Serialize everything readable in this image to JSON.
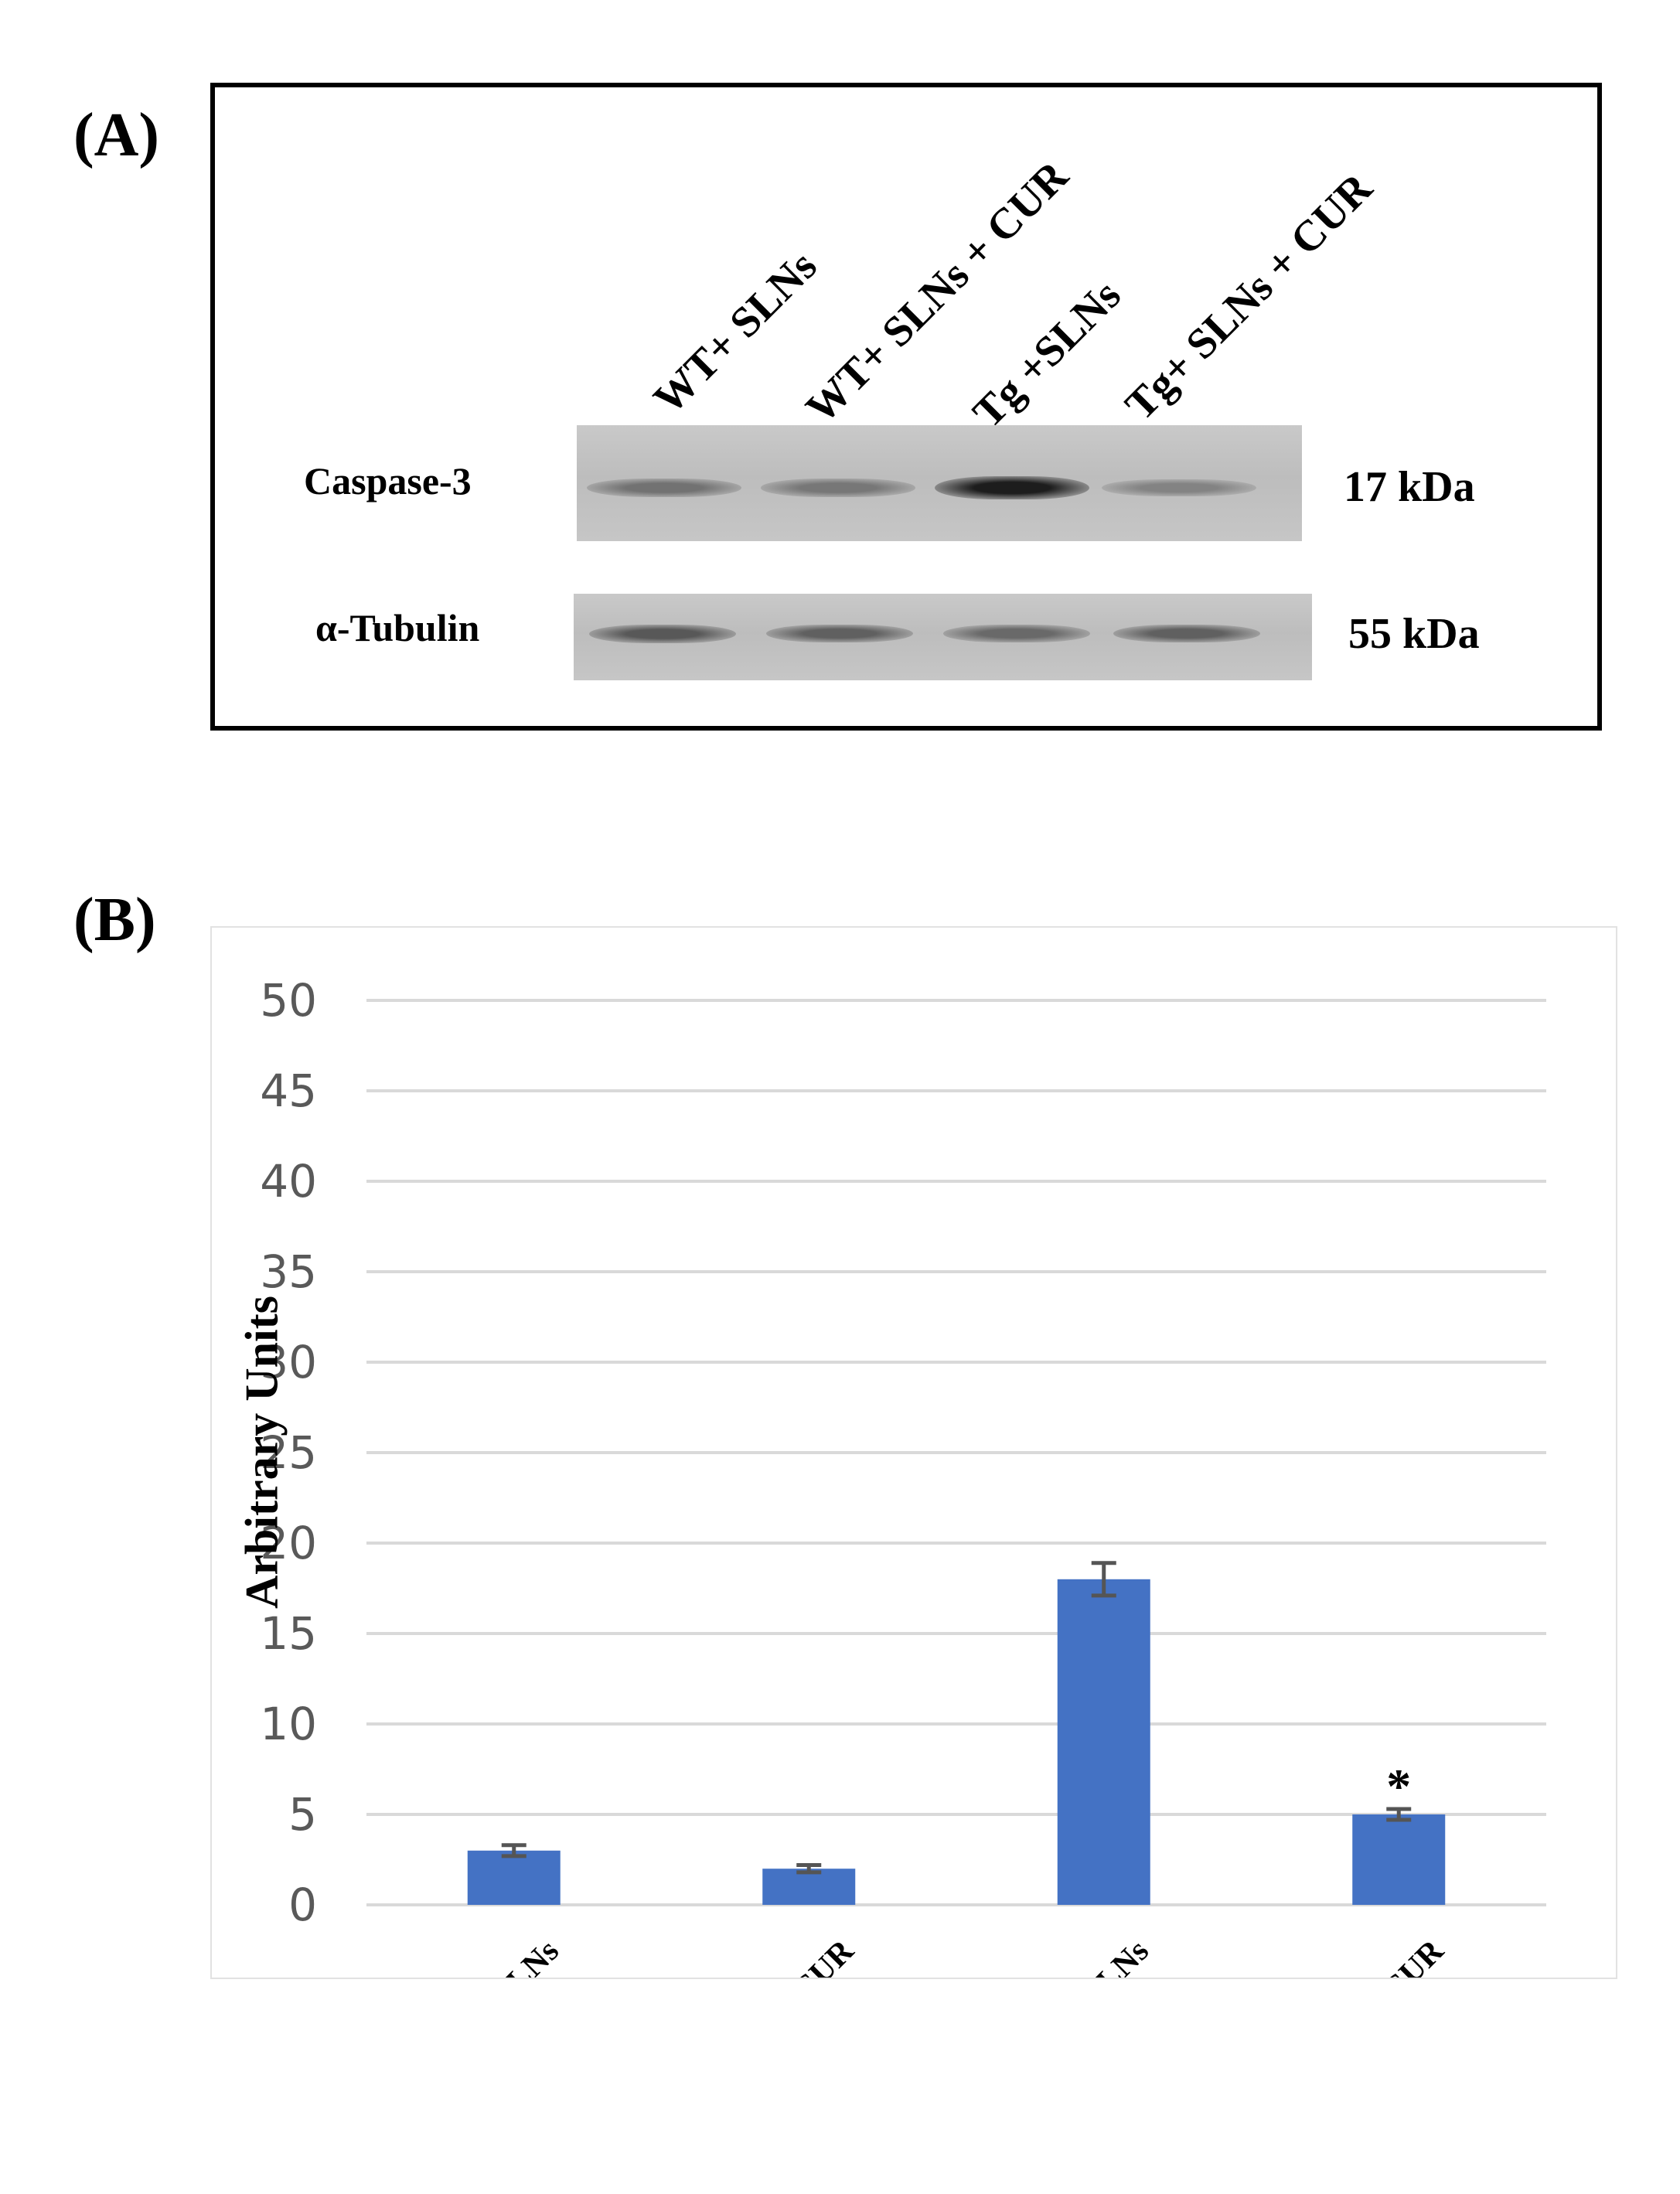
{
  "panels": {
    "a_label": "(A)",
    "b_label": "(B)"
  },
  "blot": {
    "lanes": [
      "WT+ SLNs",
      "WT+ SLNs + CUR",
      "Tg +SLNs",
      "Tg+ SLNs + CUR"
    ],
    "rows": [
      {
        "protein": "Caspase-3",
        "mw": "17 kDa",
        "band_intensity": [
          0.45,
          0.42,
          0.95,
          0.35
        ]
      },
      {
        "protein": "α-Tubulin",
        "mw": "55 kDa",
        "band_intensity": [
          0.6,
          0.55,
          0.5,
          0.55
        ]
      }
    ]
  },
  "chart_data": {
    "type": "bar",
    "categories": [
      "WT+ SLNs",
      "WT+ SLNs + CUR",
      "Tg+SLNs",
      "Tg+ SLNs + CUR"
    ],
    "values": [
      3,
      2,
      18,
      5
    ],
    "errors": [
      0.3,
      0.2,
      0.9,
      0.3
    ],
    "annotations": [
      "",
      "",
      "",
      "*"
    ],
    "xlabel": "",
    "ylabel": "Arbitrary Units",
    "ylim": [
      0,
      50
    ],
    "yticks": [
      0,
      5,
      10,
      15,
      20,
      25,
      30,
      35,
      40,
      45,
      50
    ],
    "grid": true,
    "bar_color": "#4472c4",
    "error_color": "#555555"
  }
}
